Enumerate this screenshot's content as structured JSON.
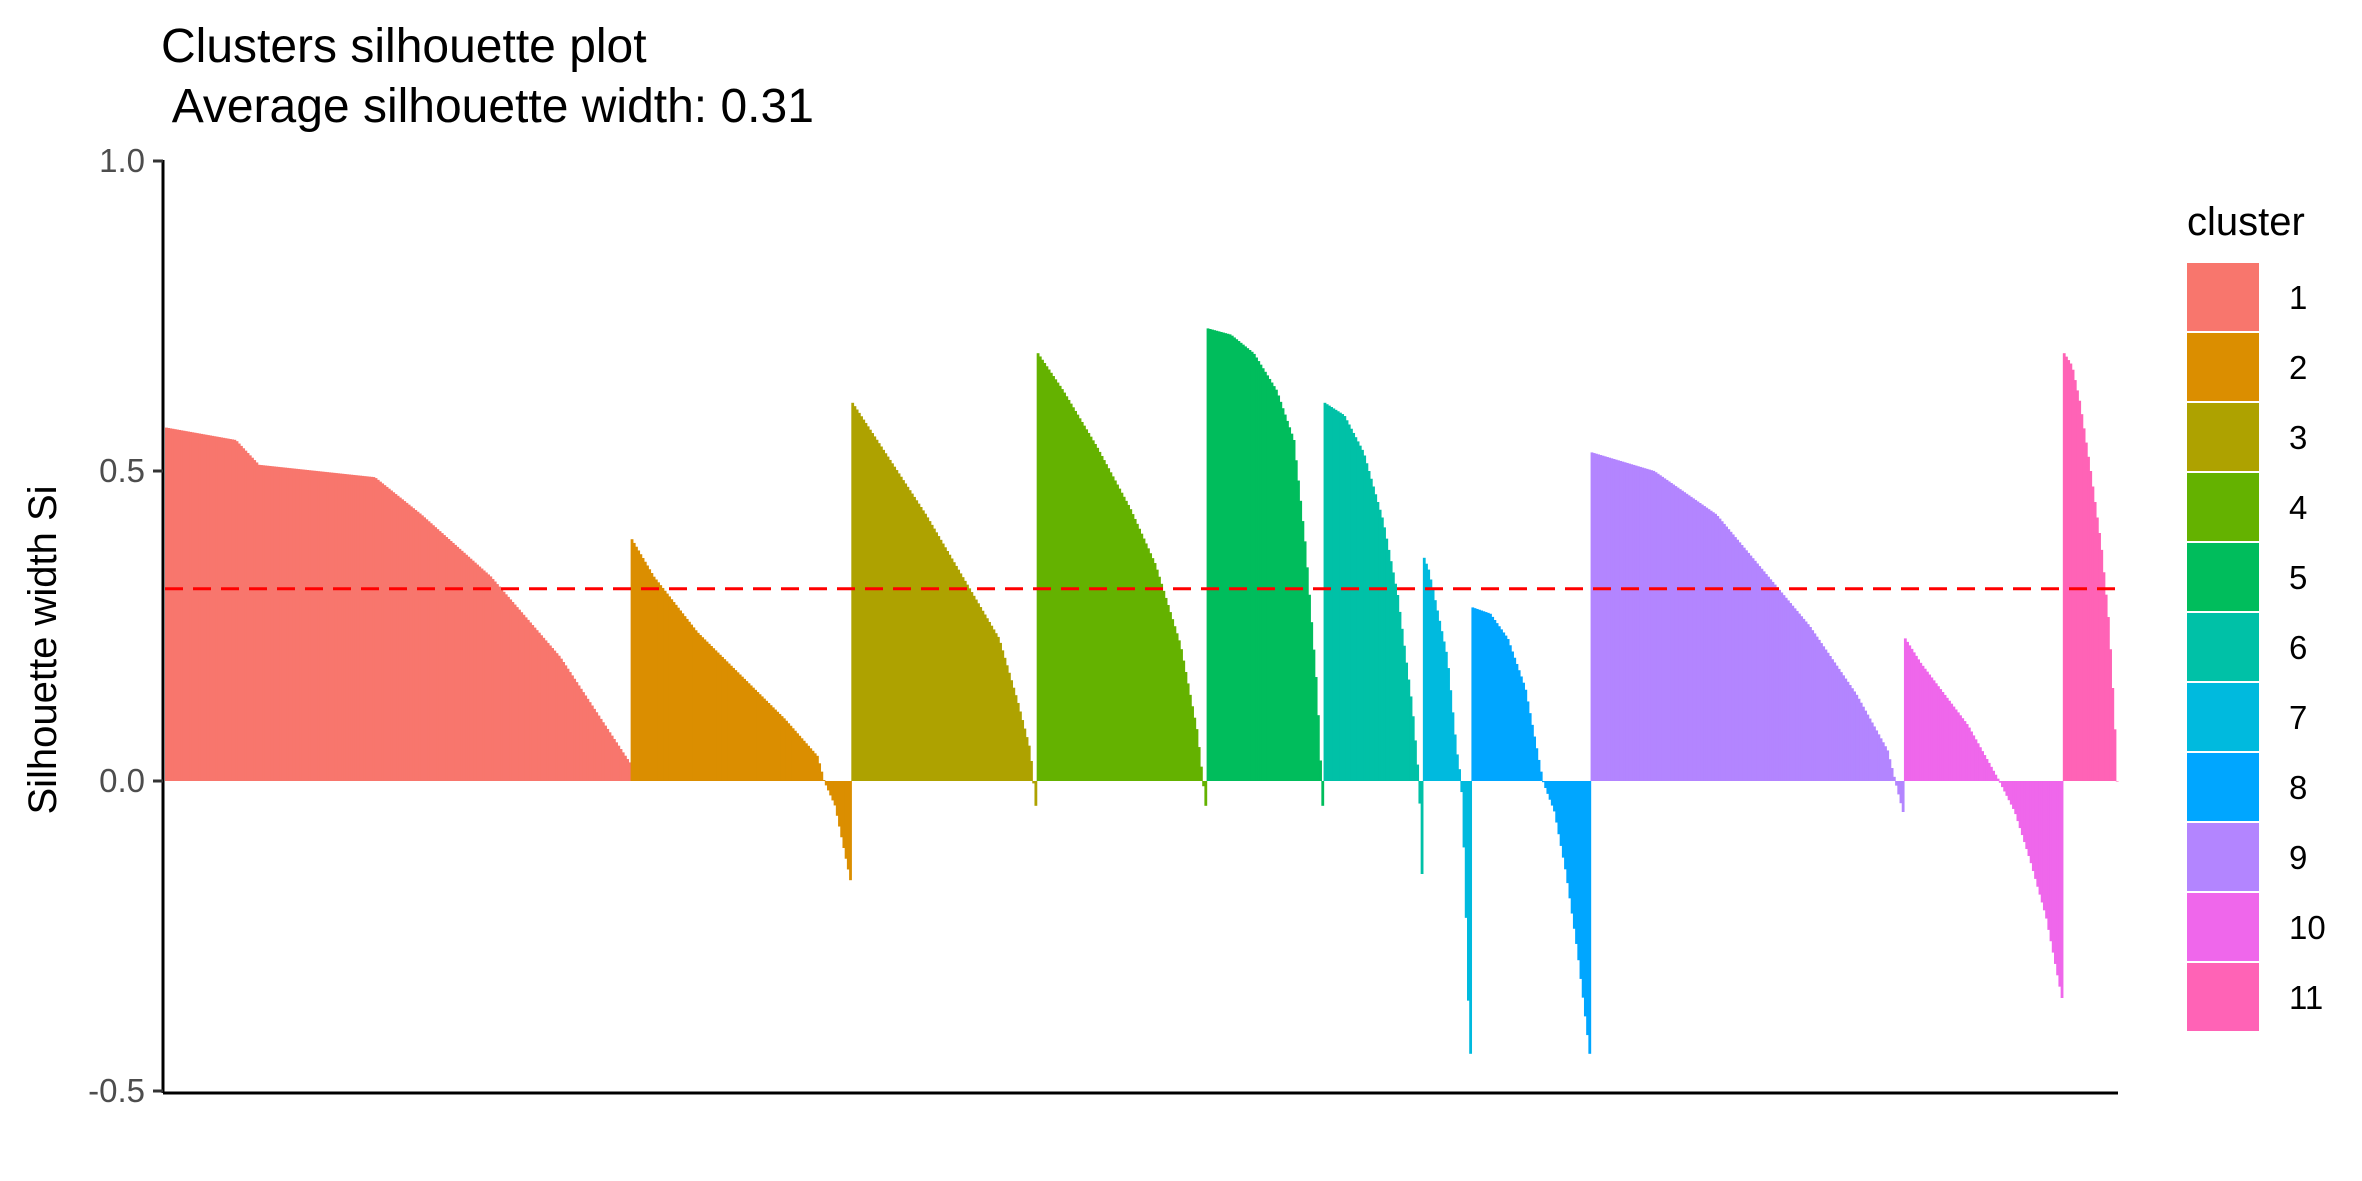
{
  "chart_data": {
    "type": "bar",
    "title": "Clusters silhouette plot",
    "subtitle": " Average silhouette width: 0.31",
    "ylabel": "Silhouette width Si",
    "xlabel": "",
    "ylim": [
      -0.5,
      1.0
    ],
    "yticks": [
      "1.0",
      "0.5",
      "0.0",
      "-0.5"
    ],
    "ytick_values": [
      1.0,
      0.5,
      0.0,
      -0.5
    ],
    "average_line": {
      "value": 0.31,
      "color": "#FF0000",
      "style": "dashed"
    },
    "legend": {
      "title": "cluster",
      "placement": "right"
    },
    "grid": false,
    "clusters": [
      {
        "name": "1",
        "color": "#F8766D",
        "count": 211,
        "profile": [
          [
            0,
            0.57
          ],
          [
            0.15,
            0.55
          ],
          [
            0.2,
            0.51
          ],
          [
            0.45,
            0.49
          ],
          [
            0.55,
            0.43
          ],
          [
            0.7,
            0.33
          ],
          [
            0.85,
            0.2
          ],
          [
            1,
            0.03
          ]
        ]
      },
      {
        "name": "2",
        "color": "#DB8E00",
        "count": 100,
        "profile": [
          [
            0,
            0.39
          ],
          [
            0.1,
            0.33
          ],
          [
            0.3,
            0.24
          ],
          [
            0.5,
            0.17
          ],
          [
            0.7,
            0.1
          ],
          [
            0.85,
            0.04
          ],
          [
            0.88,
            0.0
          ],
          [
            0.93,
            -0.04
          ],
          [
            1,
            -0.16
          ]
        ]
      },
      {
        "name": "3",
        "color": "#AEA200",
        "count": 84,
        "profile": [
          [
            0,
            0.61
          ],
          [
            0.2,
            0.52
          ],
          [
            0.4,
            0.43
          ],
          [
            0.6,
            0.33
          ],
          [
            0.8,
            0.23
          ],
          [
            0.9,
            0.13
          ],
          [
            0.97,
            0.05
          ],
          [
            1,
            -0.04
          ]
        ]
      },
      {
        "name": "4",
        "color": "#64B200",
        "count": 77,
        "profile": [
          [
            0,
            0.69
          ],
          [
            0.15,
            0.63
          ],
          [
            0.35,
            0.54
          ],
          [
            0.55,
            0.44
          ],
          [
            0.7,
            0.35
          ],
          [
            0.85,
            0.22
          ],
          [
            0.95,
            0.08
          ],
          [
            1,
            -0.04
          ]
        ]
      },
      {
        "name": "5",
        "color": "#00BD5C",
        "count": 53,
        "profile": [
          [
            0,
            0.73
          ],
          [
            0.2,
            0.72
          ],
          [
            0.4,
            0.69
          ],
          [
            0.6,
            0.63
          ],
          [
            0.75,
            0.55
          ],
          [
            0.85,
            0.38
          ],
          [
            0.95,
            0.15
          ],
          [
            1,
            -0.04
          ]
        ]
      },
      {
        "name": "6",
        "color": "#00C1A7",
        "count": 45,
        "profile": [
          [
            0,
            0.61
          ],
          [
            0.2,
            0.59
          ],
          [
            0.4,
            0.53
          ],
          [
            0.6,
            0.42
          ],
          [
            0.75,
            0.3
          ],
          [
            0.9,
            0.12
          ],
          [
            0.97,
            0.0
          ],
          [
            1,
            -0.15
          ]
        ]
      },
      {
        "name": "7",
        "color": "#00BADE",
        "count": 22,
        "profile": [
          [
            0,
            0.36
          ],
          [
            0.1,
            0.34
          ],
          [
            0.3,
            0.27
          ],
          [
            0.5,
            0.2
          ],
          [
            0.7,
            0.05
          ],
          [
            0.8,
            0.0
          ],
          [
            0.88,
            -0.15
          ],
          [
            0.95,
            -0.35
          ],
          [
            1,
            -0.44
          ]
        ]
      },
      {
        "name": "8",
        "color": "#00A6FF",
        "count": 54,
        "profile": [
          [
            0,
            0.28
          ],
          [
            0.15,
            0.27
          ],
          [
            0.3,
            0.23
          ],
          [
            0.45,
            0.15
          ],
          [
            0.55,
            0.05
          ],
          [
            0.6,
            0.0
          ],
          [
            0.7,
            -0.05
          ],
          [
            0.8,
            -0.15
          ],
          [
            0.9,
            -0.28
          ],
          [
            1,
            -0.44
          ]
        ]
      },
      {
        "name": "9",
        "color": "#B385FF",
        "count": 142,
        "profile": [
          [
            0,
            0.53
          ],
          [
            0.2,
            0.5
          ],
          [
            0.4,
            0.43
          ],
          [
            0.55,
            0.34
          ],
          [
            0.7,
            0.25
          ],
          [
            0.85,
            0.14
          ],
          [
            0.95,
            0.05
          ],
          [
            1,
            -0.05
          ]
        ]
      },
      {
        "name": "10",
        "color": "#EF67EB",
        "count": 72,
        "profile": [
          [
            0,
            0.23
          ],
          [
            0.1,
            0.19
          ],
          [
            0.25,
            0.14
          ],
          [
            0.4,
            0.09
          ],
          [
            0.6,
            0.0
          ],
          [
            0.7,
            -0.05
          ],
          [
            0.8,
            -0.13
          ],
          [
            0.9,
            -0.22
          ],
          [
            1,
            -0.35
          ]
        ]
      },
      {
        "name": "11",
        "color": "#FF63B6",
        "count": 25,
        "profile": [
          [
            0,
            0.69
          ],
          [
            0.15,
            0.67
          ],
          [
            0.3,
            0.61
          ],
          [
            0.5,
            0.5
          ],
          [
            0.7,
            0.38
          ],
          [
            0.85,
            0.25
          ],
          [
            0.95,
            0.1
          ],
          [
            1,
            0.0
          ]
        ]
      }
    ]
  }
}
